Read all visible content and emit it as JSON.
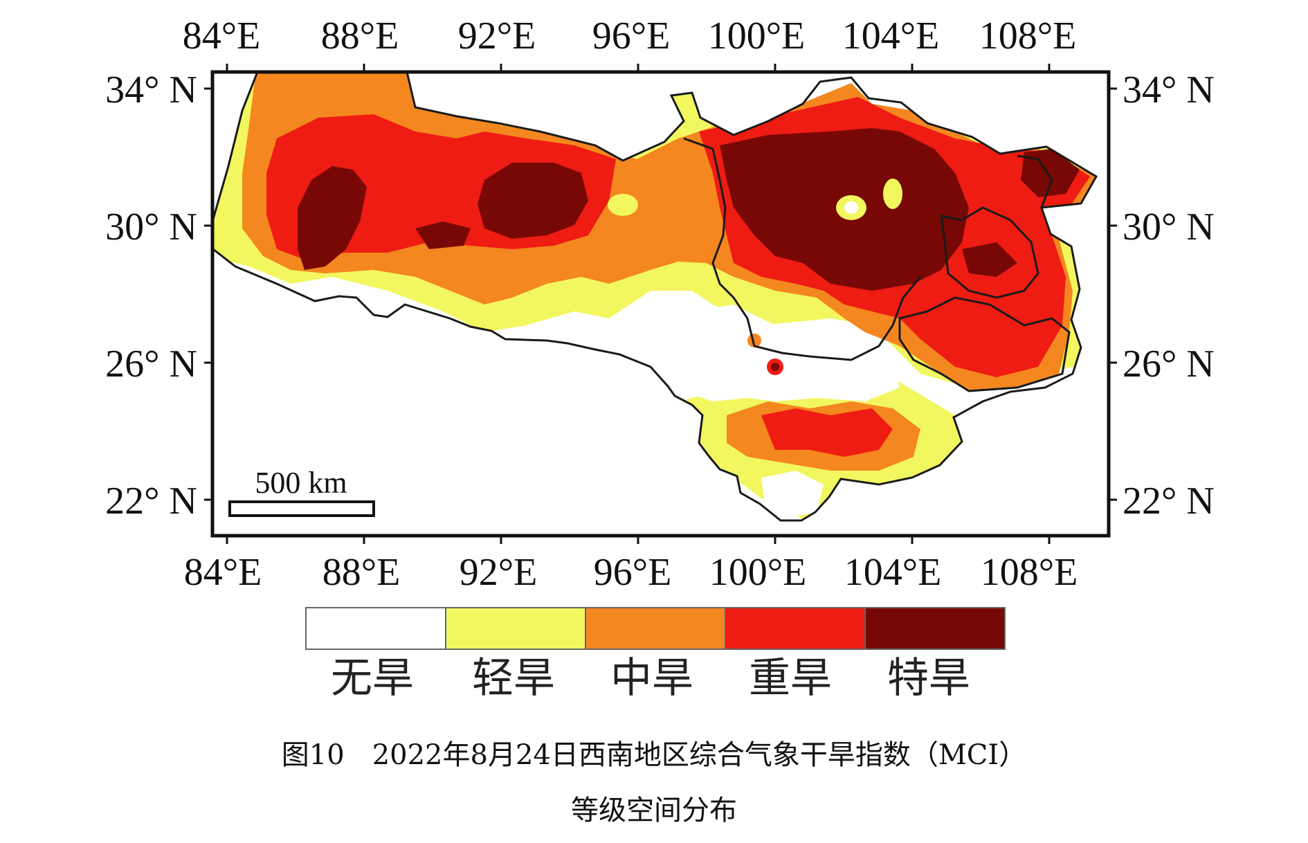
{
  "map": {
    "top_lon_labels": [
      "84°E",
      "88°E",
      "92°E",
      "96°E",
      "100°E",
      "104°E",
      "108°E"
    ],
    "bottom_lon_labels": [
      "84°E",
      "88°E",
      "92°E",
      "96°E",
      "100°E",
      "104°E",
      "108°E"
    ],
    "left_lat_labels": [
      "34° N",
      "30° N",
      "26° N",
      "22° N"
    ],
    "right_lat_labels": [
      "34° N",
      "30° N",
      "26° N",
      "22° N"
    ],
    "scale_bar": "500 km",
    "colors": {
      "none": "#ffffff",
      "light": "#f2f760",
      "moderate": "#f4871f",
      "severe": "#ee1c12",
      "extreme": "#780805",
      "border": "#1a1a1a"
    }
  },
  "legend": {
    "items": [
      {
        "label": "无旱",
        "color": "#ffffff"
      },
      {
        "label": "轻旱",
        "color": "#f2f760"
      },
      {
        "label": "中旱",
        "color": "#f4871f"
      },
      {
        "label": "重旱",
        "color": "#ee1c12"
      },
      {
        "label": "特旱",
        "color": "#780805"
      }
    ]
  },
  "caption": {
    "line1": "图10　2022年8月24日西南地区综合气象干旱指数（MCI）",
    "line2": "等级空间分布"
  }
}
